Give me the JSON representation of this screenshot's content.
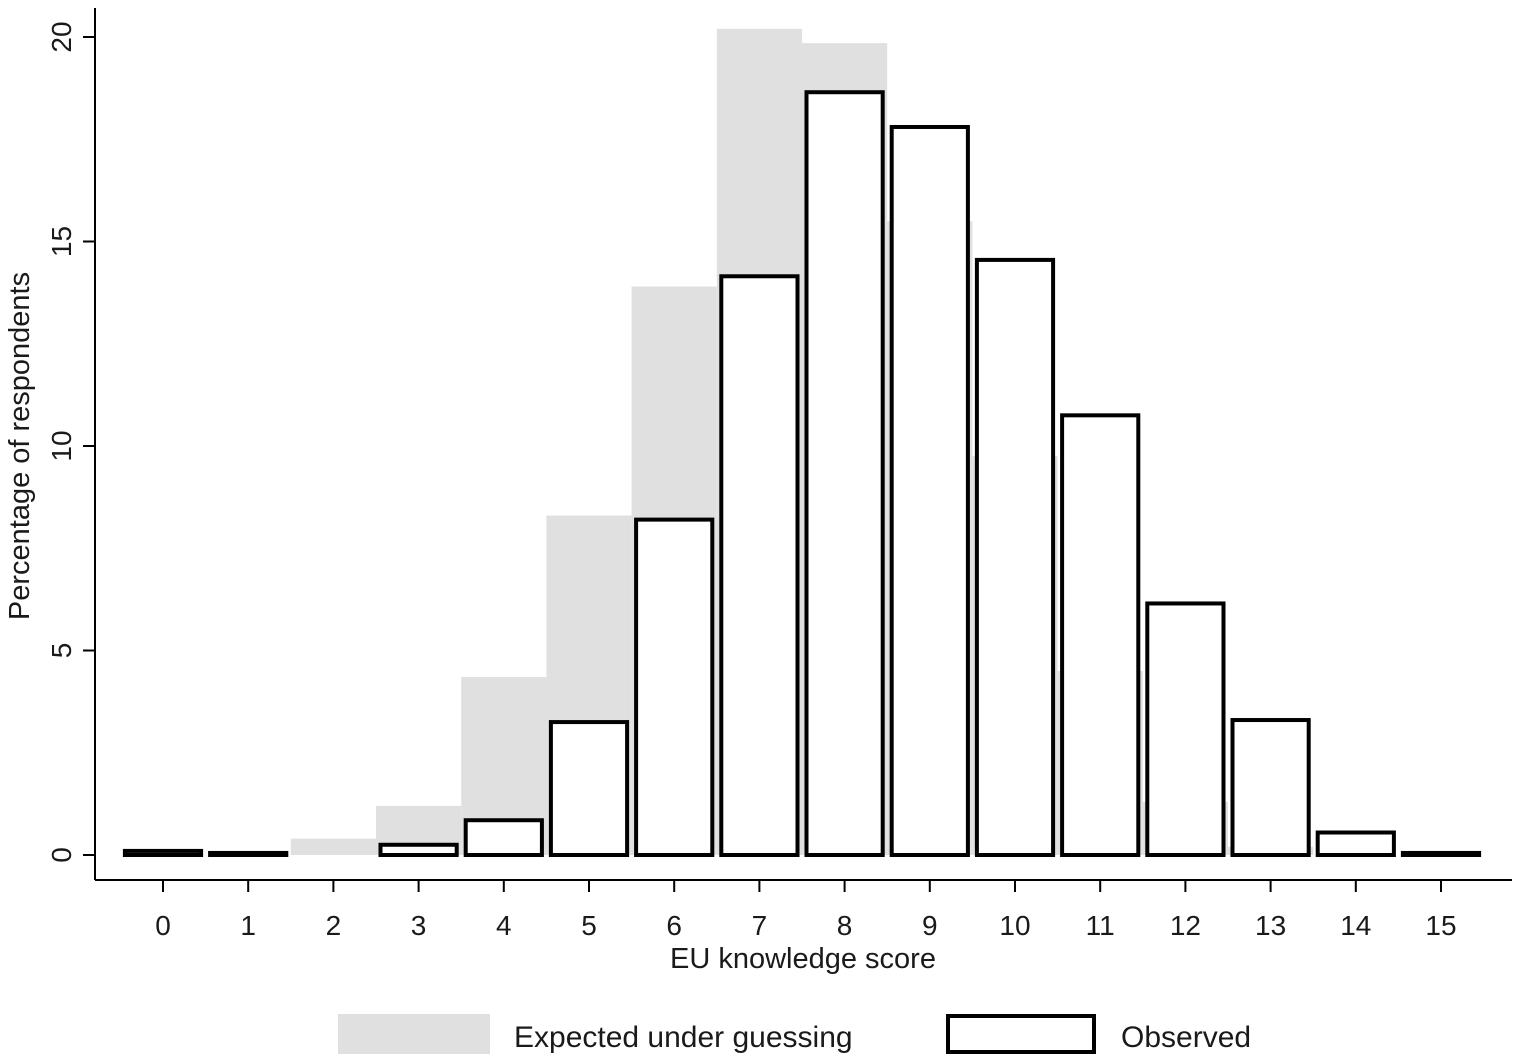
{
  "chart_data": {
    "type": "bar",
    "title": "",
    "xlabel": "EU knowledge score",
    "ylabel": "Percentage of respondents",
    "categories": [
      "0",
      "1",
      "2",
      "3",
      "4",
      "5",
      "6",
      "7",
      "8",
      "9",
      "10",
      "11",
      "12",
      "13",
      "14",
      "15"
    ],
    "x": [
      0,
      1,
      2,
      3,
      4,
      5,
      6,
      7,
      8,
      9,
      10,
      11,
      12,
      13,
      14,
      15
    ],
    "ylim": [
      0,
      20
    ],
    "yticks": [
      0,
      5,
      10,
      15,
      20
    ],
    "ytick_labels": [
      "0",
      "5",
      "10",
      "15",
      "20"
    ],
    "grid": false,
    "legend_position": "bottom",
    "series": [
      {
        "name": "Expected under guessing",
        "style": "filled",
        "color": "#e0e0e0",
        "values": [
          0.0,
          0.0,
          0.4,
          1.2,
          4.35,
          8.3,
          13.9,
          20.2,
          19.85,
          15.5,
          9.75,
          4.5,
          1.3,
          0.2,
          0.0,
          0.0
        ]
      },
      {
        "name": "Observed",
        "style": "outline",
        "color": "#000000",
        "values": [
          0.1,
          0.05,
          0.0,
          0.25,
          0.85,
          3.25,
          8.2,
          14.15,
          18.65,
          17.8,
          14.55,
          10.75,
          6.15,
          3.3,
          0.55,
          0.05
        ]
      }
    ]
  }
}
